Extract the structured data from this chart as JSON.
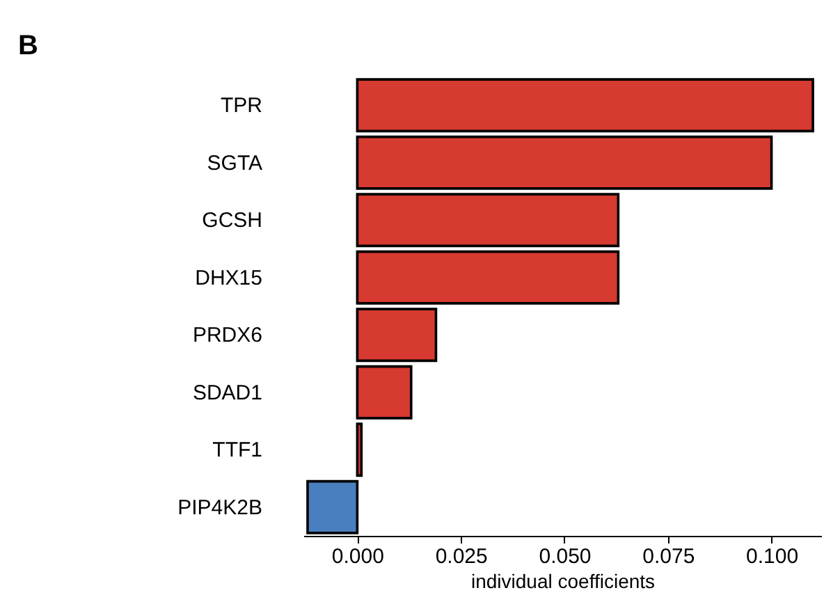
{
  "chart_data": {
    "type": "bar",
    "orientation": "horizontal",
    "title": "B",
    "xlabel": "individual coefficients",
    "categories": [
      "TPR",
      "SGTA",
      "GCSH",
      "DHX15",
      "PRDX6",
      "SDAD1",
      "TTF1",
      "PIP4K2B"
    ],
    "values": [
      0.11,
      0.1,
      0.063,
      0.063,
      0.019,
      0.013,
      0.001,
      -0.012
    ],
    "colors": [
      "#d63a30",
      "#d63a30",
      "#d63a30",
      "#d63a30",
      "#d63a30",
      "#d63a30",
      "#d63a30",
      "#4a7fbf"
    ],
    "xlim": [
      -0.013,
      0.112
    ],
    "xticks": [
      {
        "value": 0,
        "label": "0.000"
      },
      {
        "value": 0.025,
        "label": "0.025"
      },
      {
        "value": 0.05,
        "label": "0.050"
      },
      {
        "value": 0.075,
        "label": "0.075"
      },
      {
        "value": 0.1,
        "label": "0.100"
      }
    ],
    "line_style": "solid"
  }
}
